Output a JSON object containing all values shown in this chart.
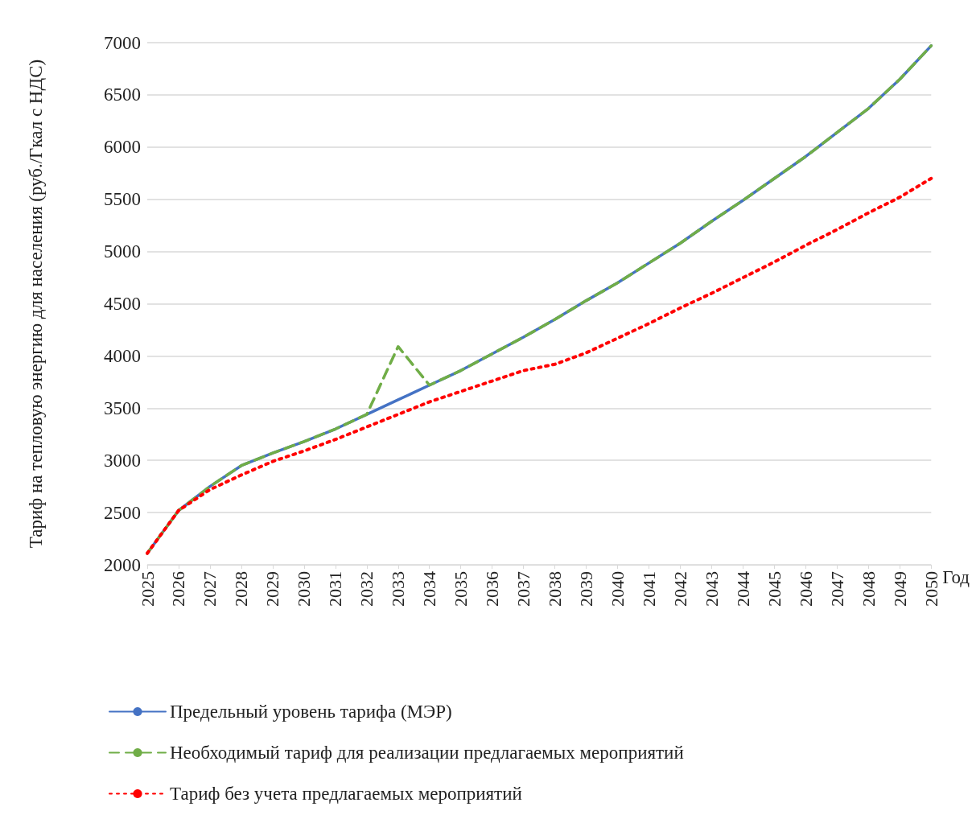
{
  "chart_data": {
    "type": "line",
    "xlabel": "Год",
    "ylabel": "Тариф на тепловую энергию для населения (руб./Гкал с НДС)",
    "categories": [
      "2025",
      "2026",
      "2027",
      "2028",
      "2029",
      "2030",
      "2031",
      "2032",
      "2033",
      "2034",
      "2035",
      "2036",
      "2037",
      "2038",
      "2039",
      "2040",
      "2041",
      "2042",
      "2043",
      "2044",
      "2045",
      "2046",
      "2047",
      "2048",
      "2049",
      "2050"
    ],
    "series": [
      {
        "name": "Предельный уровень тарифа (МЭР)",
        "color": "#4472c4",
        "line_style": "solid",
        "values": [
          2110,
          2520,
          2750,
          2950,
          3070,
          3180,
          3300,
          3440,
          3580,
          3720,
          3860,
          4020,
          4180,
          4350,
          4530,
          4700,
          4890,
          5080,
          5290,
          5490,
          5700,
          5910,
          6140,
          6370,
          6650,
          6970
        ]
      },
      {
        "name": "Необходимый тариф для реализации предлагаемых мероприятий",
        "color": "#70ad47",
        "line_style": "dashed",
        "values": [
          2110,
          2520,
          2750,
          2950,
          3070,
          3180,
          3300,
          3440,
          4090,
          3720,
          3860,
          4020,
          4180,
          4350,
          4530,
          4700,
          4890,
          5080,
          5290,
          5490,
          5700,
          5910,
          6140,
          6370,
          6650,
          6970
        ]
      },
      {
        "name": "Тариф без учета предлагаемых мероприятий",
        "color": "#ff0000",
        "line_style": "dotted",
        "values": [
          2110,
          2520,
          2720,
          2860,
          2990,
          3090,
          3200,
          3320,
          3440,
          3560,
          3660,
          3760,
          3860,
          3920,
          4030,
          4170,
          4310,
          4460,
          4600,
          4750,
          4900,
          5060,
          5210,
          5370,
          5520,
          5700
        ]
      }
    ],
    "ylim": [
      2000,
      7000
    ],
    "yticks": [
      2000,
      2500,
      3000,
      3500,
      4000,
      4500,
      5000,
      5500,
      6000,
      6500,
      7000
    ],
    "grid": "y",
    "legend": "bottom",
    "marker": "none"
  }
}
